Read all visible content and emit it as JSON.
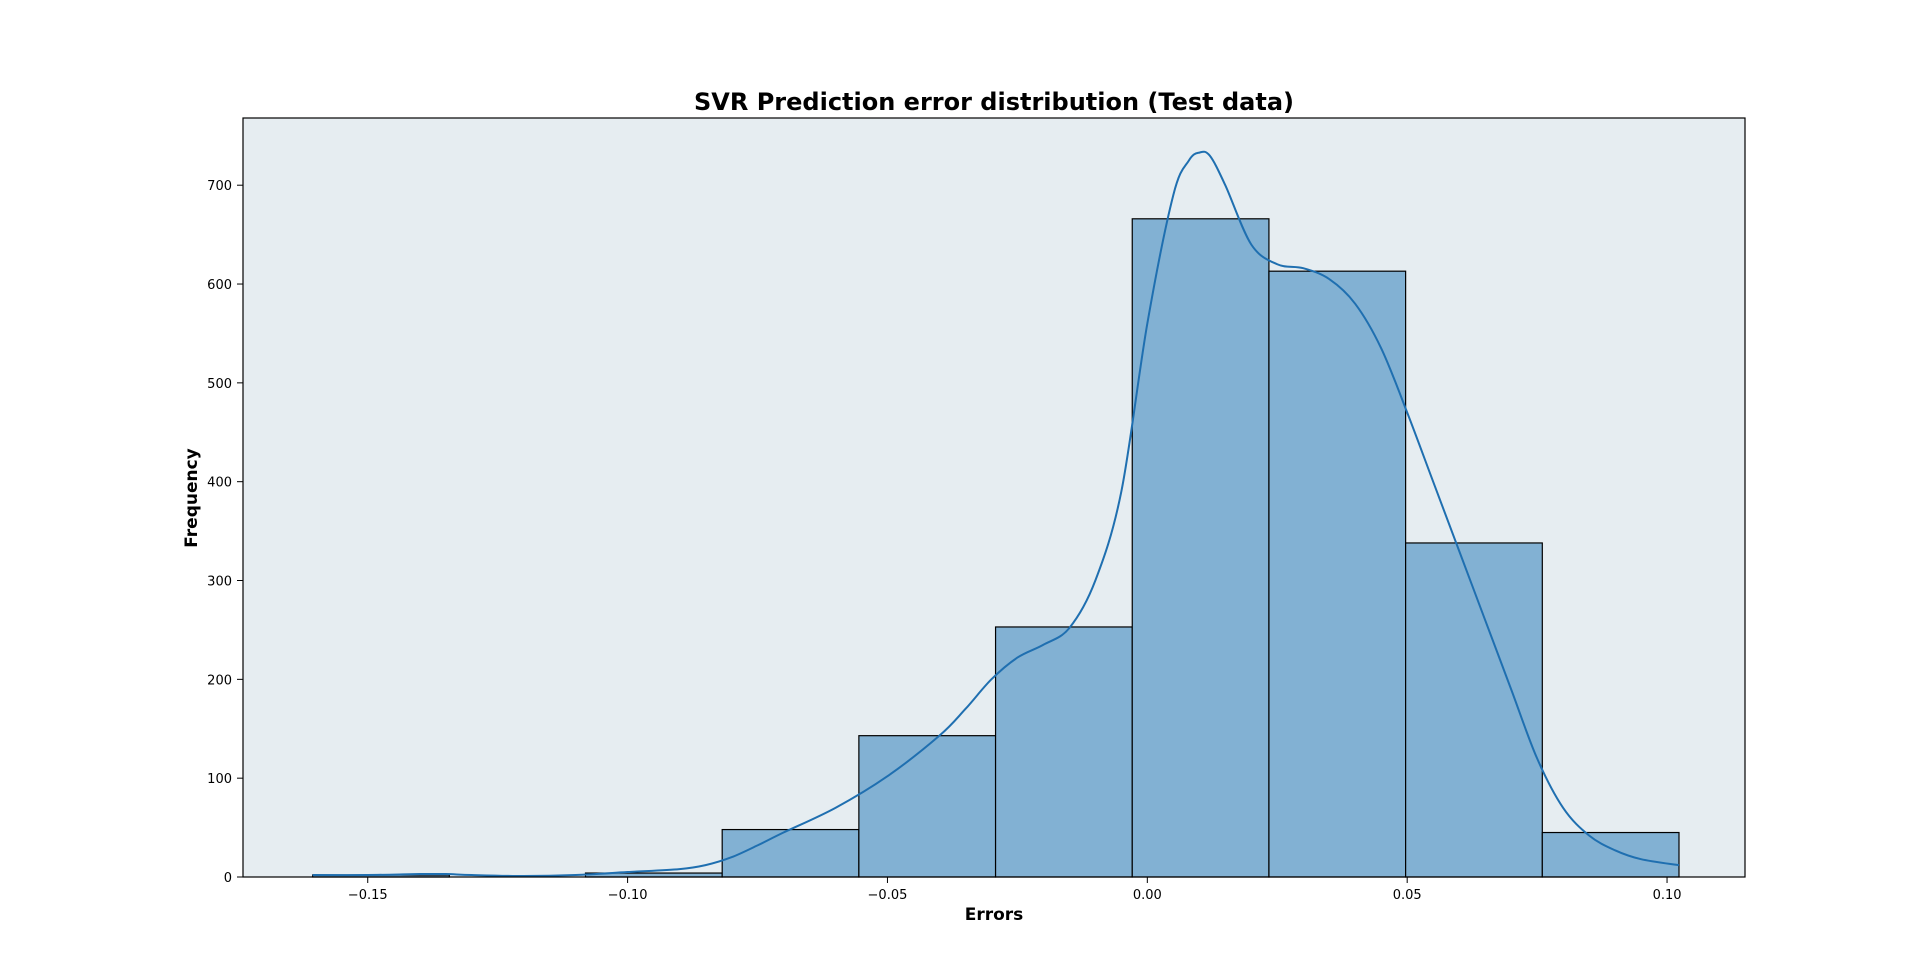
{
  "chart_data": {
    "type": "bar",
    "title": "SVR Prediction error distribution (Test data)",
    "xlabel": "Errors",
    "ylabel": "Frequency",
    "xlim": [
      -0.174,
      0.115
    ],
    "ylim": [
      0,
      768
    ],
    "x_ticks": [
      -0.15,
      -0.1,
      -0.05,
      0.0,
      0.05,
      0.1
    ],
    "x_tick_labels": [
      "−0.15",
      "−0.10",
      "−0.05",
      "0.00",
      "0.05",
      "0.10"
    ],
    "y_ticks": [
      0,
      100,
      200,
      300,
      400,
      500,
      600,
      700
    ],
    "y_tick_labels": [
      "0",
      "100",
      "200",
      "300",
      "400",
      "500",
      "600",
      "700"
    ],
    "grid": false,
    "plot_background": "#e6edf1",
    "bar_color": "#82b1d3",
    "line_color": "#1f6fb0",
    "bins": [
      {
        "start": -0.1606,
        "end": -0.1343,
        "count": 2
      },
      {
        "start": -0.1343,
        "end": -0.1081,
        "count": 0
      },
      {
        "start": -0.1081,
        "end": -0.0818,
        "count": 4
      },
      {
        "start": -0.0818,
        "end": -0.0555,
        "count": 48
      },
      {
        "start": -0.0555,
        "end": -0.0292,
        "count": 143
      },
      {
        "start": -0.0292,
        "end": -0.0029,
        "count": 253
      },
      {
        "start": -0.0029,
        "end": 0.0234,
        "count": 666
      },
      {
        "start": 0.0234,
        "end": 0.0497,
        "count": 613
      },
      {
        "start": 0.0497,
        "end": 0.076,
        "count": 338
      },
      {
        "start": 0.076,
        "end": 0.1023,
        "count": 45
      }
    ],
    "kde": {
      "x": [
        -0.1606,
        -0.15,
        -0.14,
        -0.135,
        -0.13,
        -0.12,
        -0.11,
        -0.1,
        -0.09,
        -0.085,
        -0.08,
        -0.075,
        -0.07,
        -0.06,
        -0.05,
        -0.04,
        -0.035,
        -0.03,
        -0.025,
        -0.02,
        -0.015,
        -0.01,
        -0.005,
        0.0,
        0.005,
        0.008,
        0.01,
        0.012,
        0.015,
        0.02,
        0.025,
        0.03,
        0.035,
        0.04,
        0.045,
        0.05,
        0.055,
        0.06,
        0.065,
        0.07,
        0.075,
        0.08,
        0.085,
        0.09,
        0.095,
        0.1023
      ],
      "y": [
        2,
        2,
        3,
        3,
        2,
        1,
        2,
        5,
        8,
        12,
        20,
        32,
        45,
        70,
        102,
        143,
        170,
        200,
        222,
        235,
        252,
        300,
        390,
        560,
        690,
        725,
        733,
        730,
        700,
        640,
        620,
        616,
        605,
        580,
        535,
        470,
        400,
        330,
        260,
        190,
        120,
        70,
        42,
        27,
        18,
        12
      ]
    }
  }
}
